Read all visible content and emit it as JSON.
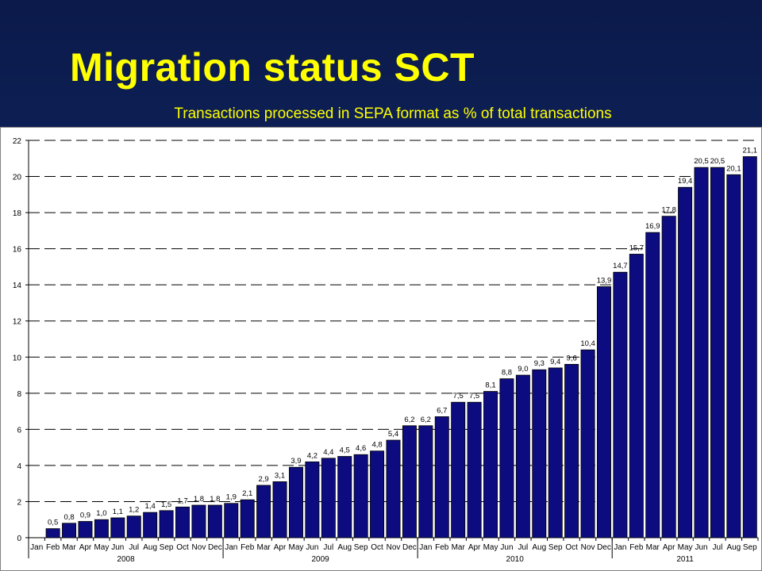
{
  "slide": {
    "title": "Migration status SCT",
    "subtitle": "Transactions processed in SEPA format as % of total transactions"
  },
  "colors": {
    "background": "#0d1f55",
    "title": "#ffff00",
    "bar": "#0c0c80",
    "grid": "#000000"
  },
  "chart_data": {
    "type": "bar",
    "title": "",
    "xlabel": "",
    "ylabel": "",
    "ylim": [
      0,
      22
    ],
    "yticks": [
      0,
      2,
      4,
      6,
      8,
      10,
      12,
      14,
      16,
      18,
      20,
      22
    ],
    "grid": "horizontal dashed",
    "legend": "none",
    "categories": [
      "Jan",
      "Feb",
      "Mar",
      "Apr",
      "May",
      "Jun",
      "Jul",
      "Aug",
      "Sep",
      "Oct",
      "Nov",
      "Dec",
      "Jan",
      "Feb",
      "Mar",
      "Apr",
      "May",
      "Jun",
      "Jul",
      "Aug",
      "Sep",
      "Oct",
      "Nov",
      "Dec",
      "Jan",
      "Feb",
      "Mar",
      "Apr",
      "May",
      "Jun",
      "Jul",
      "Aug",
      "Sep",
      "Oct",
      "Nov",
      "Dec",
      "Jan",
      "Feb",
      "Mar",
      "Apr",
      "May",
      "Jun",
      "Jul",
      "Aug",
      "Sep"
    ],
    "values": [
      null,
      0.5,
      0.8,
      0.9,
      1.0,
      1.1,
      1.2,
      1.4,
      1.5,
      1.7,
      1.8,
      1.8,
      1.9,
      2.1,
      2.9,
      3.1,
      3.9,
      4.2,
      4.4,
      4.5,
      4.6,
      4.8,
      5.4,
      6.2,
      6.2,
      6.7,
      7.5,
      7.5,
      8.1,
      8.8,
      9.0,
      9.3,
      9.4,
      9.6,
      10.4,
      13.9,
      14.7,
      15.7,
      16.9,
      17.8,
      19.4,
      20.5,
      20.5,
      20.1,
      21.1
    ],
    "value_labels": [
      "",
      "0,5",
      "0,8",
      "0,9",
      "1,0",
      "1,1",
      "1,2",
      "1,4",
      "1,5",
      "1,7",
      "1,8",
      "1,8",
      "1,9",
      "2,1",
      "2,9",
      "3,1",
      "3,9",
      "4,2",
      "4,4",
      "4,5",
      "4,6",
      "4,8",
      "5,4",
      "6,2",
      "6,2",
      "6,7",
      "7,5",
      "7,5",
      "8,1",
      "8,8",
      "9,0",
      "9,3",
      "9,4",
      "9,6",
      "10,4",
      "13,9",
      "14,7",
      "15,7",
      "16,9",
      "17,8",
      "19,4",
      "20,5",
      "20,5",
      "20,1",
      "21,1"
    ],
    "years": [
      {
        "label": "2008",
        "start": 0,
        "count": 12
      },
      {
        "label": "2009",
        "start": 12,
        "count": 12
      },
      {
        "label": "2010",
        "start": 24,
        "count": 12
      },
      {
        "label": "2011",
        "start": 36,
        "count": 9
      }
    ]
  }
}
